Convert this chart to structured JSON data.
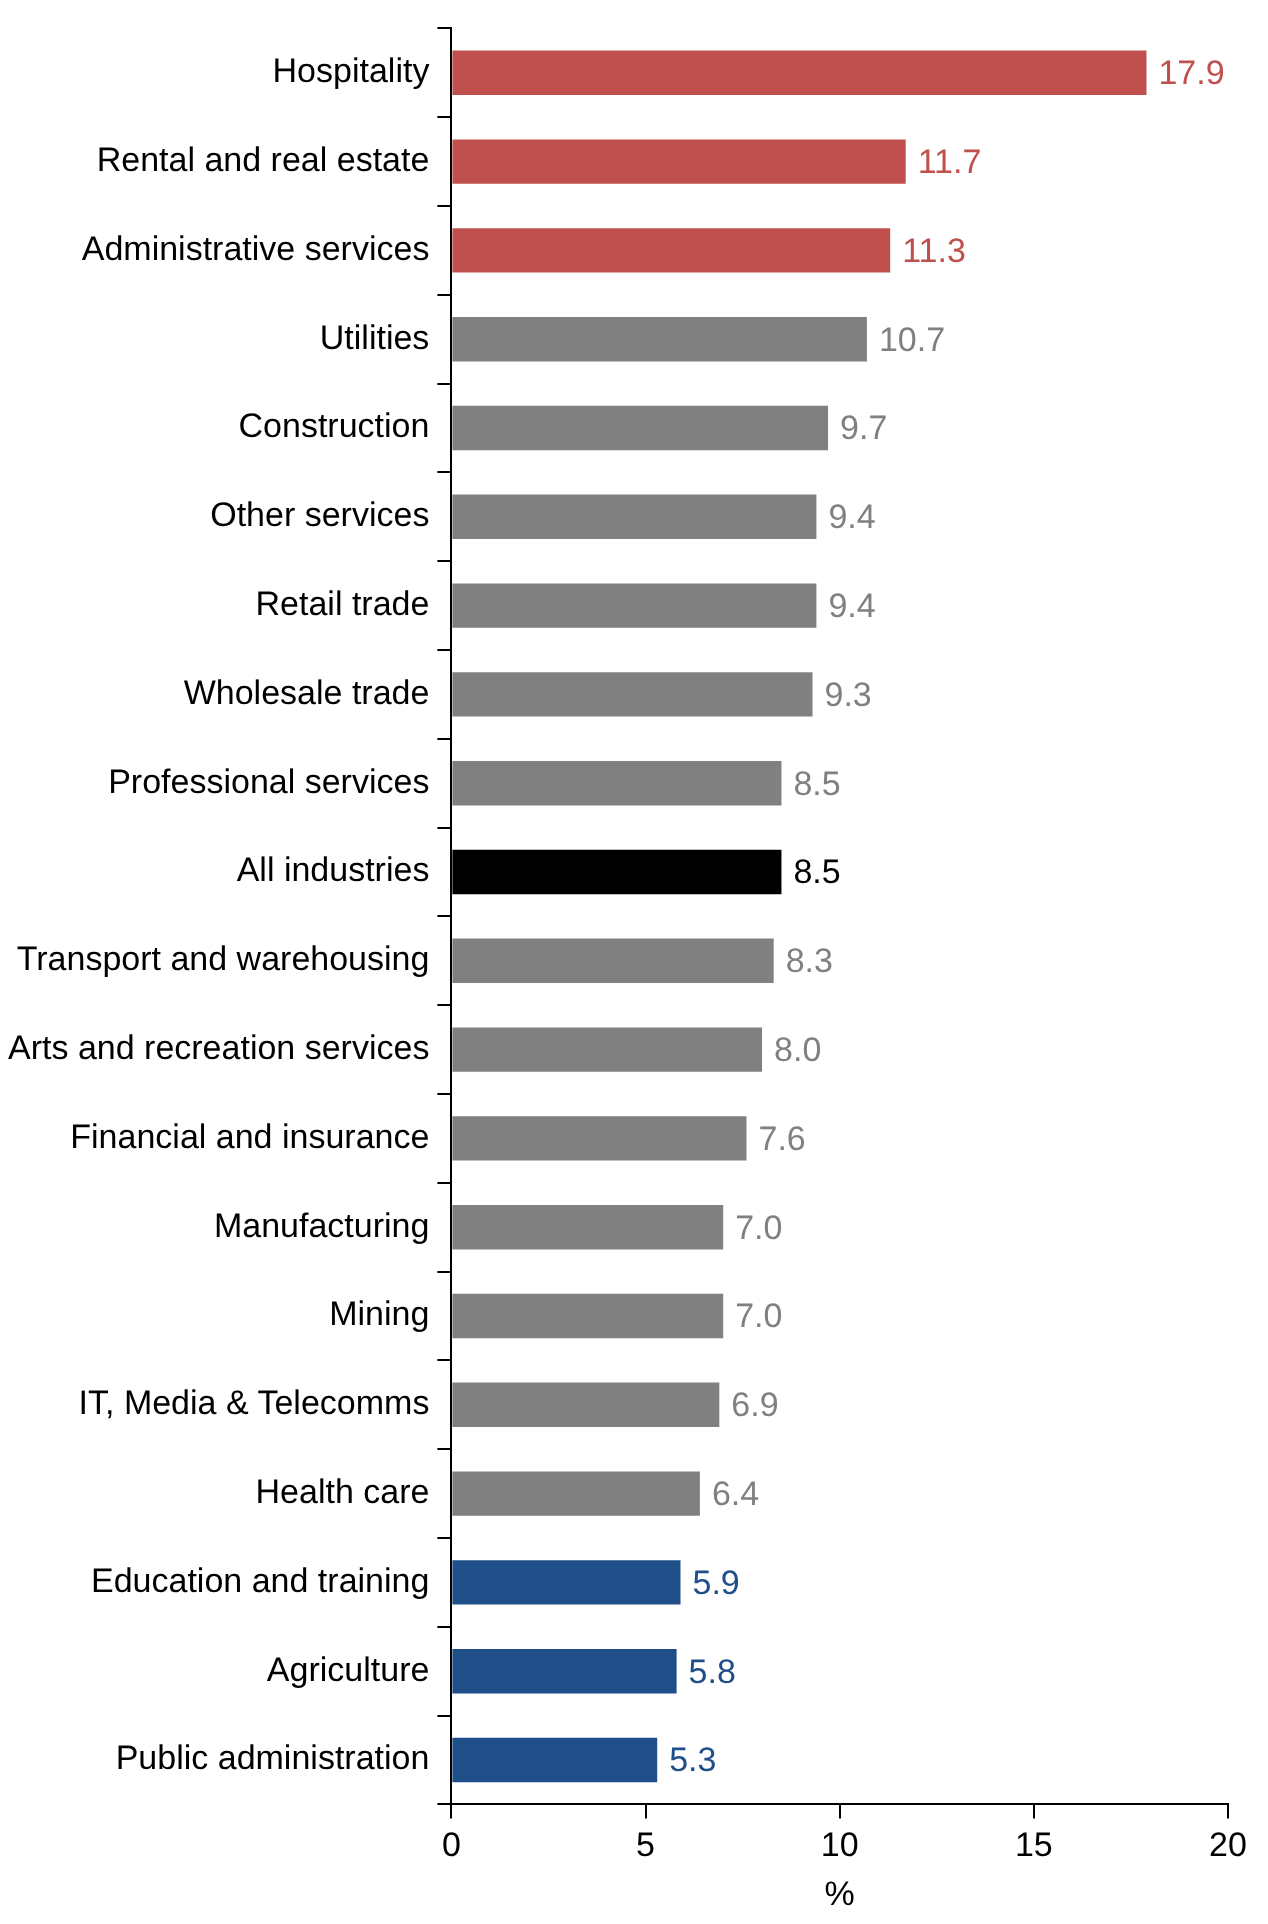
{
  "chart_data": {
    "type": "bar",
    "orientation": "horizontal",
    "xlabel": "%",
    "categories": [
      "Hospitality",
      "Rental and real estate",
      "Administrative services",
      "Utilities",
      "Construction",
      "Other services",
      "Retail trade",
      "Wholesale trade",
      "Professional services",
      "All industries",
      "Transport and warehousing",
      "Arts and recreation services",
      "Financial and insurance",
      "Manufacturing",
      "Mining",
      "IT, Media & Telecomms",
      "Health care",
      "Education and training",
      "Agriculture",
      "Public administration"
    ],
    "values": [
      17.9,
      11.7,
      11.3,
      10.7,
      9.7,
      9.4,
      9.4,
      9.3,
      8.5,
      8.5,
      8.3,
      8.0,
      7.6,
      7.0,
      7.0,
      6.9,
      6.4,
      5.9,
      5.8,
      5.3
    ],
    "value_labels": [
      "17.9",
      "11.7",
      "11.3",
      "10.7",
      "9.7",
      "9.4",
      "9.4",
      "9.3",
      "8.5",
      "8.5",
      "8.3",
      "8.0",
      "7.6",
      "7.0",
      "7.0",
      "6.9",
      "6.4",
      "5.9",
      "5.8",
      "5.3"
    ],
    "colors": [
      "#c0504d",
      "#c0504d",
      "#c0504d",
      "#808080",
      "#808080",
      "#808080",
      "#808080",
      "#808080",
      "#808080",
      "#000000",
      "#808080",
      "#808080",
      "#808080",
      "#808080",
      "#808080",
      "#808080",
      "#808080",
      "#1f4e89",
      "#1f4e89",
      "#1f4e89"
    ],
    "xlim": [
      0,
      20
    ],
    "xticks": [
      0,
      5,
      10,
      15,
      20
    ],
    "grid": false,
    "legend": false
  }
}
